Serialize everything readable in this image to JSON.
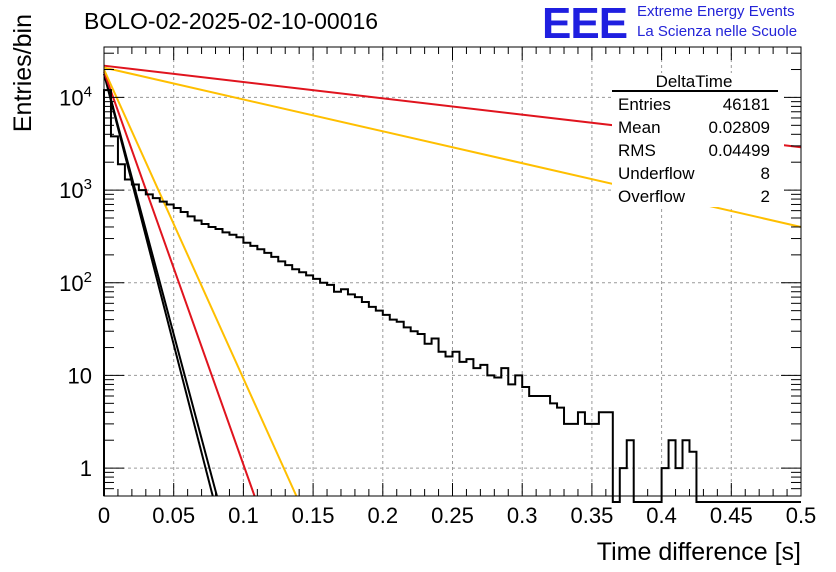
{
  "header": {
    "title": "BOLO-02-2025-02-10-00016",
    "logo": "EEE",
    "logo_line1": "Extreme Energy Events",
    "logo_line2": "La Scienza nelle Scuole"
  },
  "stats": {
    "name": "DeltaTime",
    "rows": [
      {
        "label": "Entries",
        "value": "46181"
      },
      {
        "label": "Mean",
        "value": "0.02809"
      },
      {
        "label": "RMS",
        "value": "0.04499"
      },
      {
        "label": "Underflow",
        "value": "8"
      },
      {
        "label": "Overflow",
        "value": "2"
      }
    ]
  },
  "colors": {
    "histogram": "#000000",
    "red_fit": "#e0141e",
    "yellow_fit": "#ffbf00",
    "grid": "#9a9a9a"
  },
  "chart_data": {
    "type": "line",
    "title": "BOLO-02-2025-02-10-00016",
    "xlabel": "Time difference [s]",
    "ylabel": "Entries/bin",
    "xlim": [
      0,
      0.5
    ],
    "ylim": [
      0.5,
      35000
    ],
    "yscale": "log",
    "grid": true,
    "x_ticks": [
      "0",
      "0.05",
      "0.1",
      "0.15",
      "0.2",
      "0.25",
      "0.3",
      "0.35",
      "0.4",
      "0.45",
      "0.5"
    ],
    "y_ticks": [
      {
        "value": 1,
        "base": "1",
        "exp": ""
      },
      {
        "value": 10,
        "base": "10",
        "exp": ""
      },
      {
        "value": 100,
        "base": "10",
        "exp": "2"
      },
      {
        "value": 1000,
        "base": "10",
        "exp": "3"
      },
      {
        "value": 10000,
        "base": "10",
        "exp": "4"
      }
    ],
    "histogram": {
      "bin_width": 0.005,
      "values": [
        12000,
        3800,
        1900,
        1300,
        1150,
        1000,
        900,
        820,
        750,
        700,
        640,
        580,
        520,
        470,
        430,
        400,
        380,
        350,
        330,
        310,
        270,
        250,
        230,
        210,
        190,
        170,
        155,
        140,
        130,
        120,
        110,
        100,
        95,
        80,
        85,
        75,
        70,
        62,
        55,
        50,
        45,
        40,
        38,
        33,
        30,
        28,
        22,
        25,
        18,
        16,
        18,
        14,
        15,
        12,
        13,
        10,
        9.5,
        12,
        8,
        10,
        7.5,
        6,
        6,
        6,
        5,
        4.5,
        3,
        3,
        4,
        3,
        3,
        4,
        4,
        0.3,
        1,
        2,
        0.3,
        0.3,
        0.3,
        0.3,
        1,
        2,
        1,
        2,
        1.5,
        0.3,
        0.3,
        0.3,
        0.3,
        0.3,
        0.3,
        0.3,
        0.3,
        0.3,
        0.3,
        0.3,
        0.3,
        0.3,
        0.3,
        0.3
      ]
    },
    "series": [
      {
        "color": "black",
        "x": [
          0,
          0.078
        ],
        "y": [
          18000,
          0.5
        ]
      },
      {
        "color": "black",
        "x": [
          0.001,
          0.081
        ],
        "y": [
          16000,
          0.5
        ]
      },
      {
        "color": "red",
        "x": [
          0,
          0.108
        ],
        "y": [
          19000,
          0.5
        ]
      },
      {
        "color": "yellow",
        "x": [
          0,
          0.138
        ],
        "y": [
          20000,
          0.5
        ]
      },
      {
        "color": "red",
        "x": [
          0,
          0.5
        ],
        "y": [
          22000,
          2900
        ]
      },
      {
        "color": "yellow",
        "x": [
          0,
          0.5
        ],
        "y": [
          21000,
          400
        ]
      }
    ]
  }
}
